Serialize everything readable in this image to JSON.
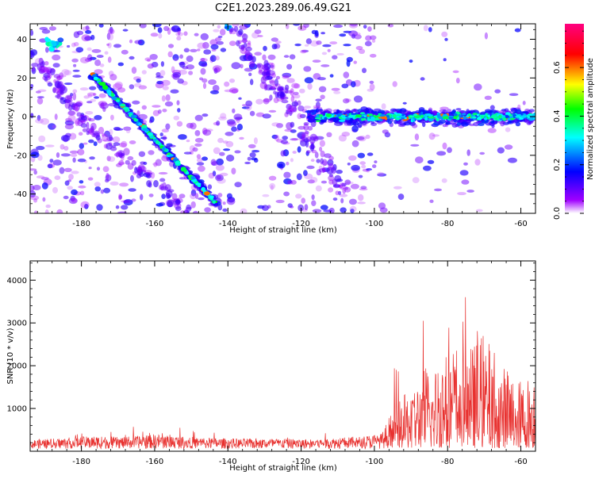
{
  "title": "C2E1.2023.289.06.49.G21",
  "chart_data": [
    {
      "type": "heatmap",
      "xlabel": "Height of straight line (km)",
      "ylabel": "Frequency (Hz)",
      "xlim": [
        -194,
        -56
      ],
      "ylim": [
        -50,
        48
      ],
      "xticks": [
        -180,
        -160,
        -140,
        -120,
        -100,
        -80,
        -60
      ],
      "yticks": [
        -40,
        -20,
        0,
        20,
        40
      ],
      "colorbar": {
        "label": "Normalized spectral amplitude",
        "range": [
          0,
          0.78
        ],
        "ticks": [
          0.0,
          0.2,
          0.4,
          0.6
        ],
        "colors": [
          "#ffffff",
          "#a000ff",
          "#0000ff",
          "#00ffff",
          "#00ff00",
          "#ffff00",
          "#ff0000",
          "#ff0080"
        ]
      },
      "features": [
        {
          "kind": "dispersive-track",
          "x_range": [
            -177,
            -143
          ],
          "y_range": [
            22,
            -45
          ]
        },
        {
          "kind": "steady-band",
          "x_range": [
            -118,
            -56
          ],
          "y_center": 0
        }
      ]
    },
    {
      "type": "line",
      "xlabel": "Height of straight line (km)",
      "ylabel": "SNR (10 * v/v)",
      "xlim": [
        -194,
        -56
      ],
      "ylim": [
        0,
        4450
      ],
      "xticks": [
        -180,
        -160,
        -140,
        -120,
        -100,
        -80,
        -60
      ],
      "yticks": [
        1000,
        2000,
        3000,
        4000
      ],
      "color": "#e8312f",
      "series": [
        {
          "x": [
            -194,
            -185,
            -176,
            -168,
            -160,
            -152,
            -144,
            -136,
            -128,
            -120,
            -112,
            -104,
            -98,
            -95,
            -92,
            -90,
            -88,
            -86,
            -84,
            -82,
            -80,
            -78,
            -76,
            -74,
            -72,
            -70,
            -68,
            -66,
            -64,
            -62,
            -60,
            -58,
            -56
          ],
          "y": [
            230,
            280,
            330,
            300,
            380,
            320,
            280,
            260,
            270,
            250,
            280,
            320,
            400,
            900,
            1200,
            1500,
            1600,
            2000,
            1700,
            2400,
            2200,
            2600,
            2300,
            2400,
            2500,
            2800,
            2300,
            2000,
            1900,
            1700,
            1600,
            1700,
            1800
          ]
        }
      ]
    }
  ]
}
